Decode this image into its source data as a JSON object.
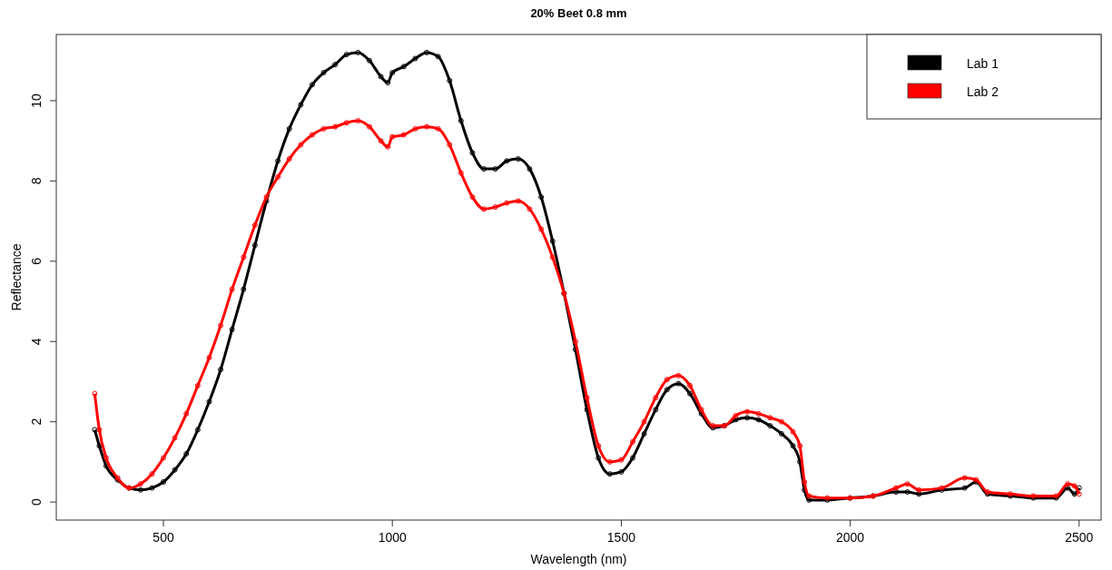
{
  "chart_data": {
    "type": "line",
    "title": "20% Beet 0.8 mm",
    "xlabel": "Wavelength (nm)",
    "ylabel": "Reflectance",
    "marker": "circle",
    "legend": "top right",
    "xlim": [
      266,
      2548
    ],
    "ylim": [
      -0.45,
      11.65
    ],
    "xticks": [
      500,
      1000,
      1500,
      2000,
      2500
    ],
    "yticks": [
      0,
      2,
      4,
      6,
      8,
      10
    ],
    "x": [
      350,
      360,
      375,
      400,
      425,
      450,
      475,
      500,
      525,
      550,
      575,
      600,
      625,
      650,
      675,
      700,
      725,
      750,
      775,
      800,
      825,
      850,
      875,
      900,
      925,
      950,
      975,
      990,
      1000,
      1025,
      1050,
      1075,
      1100,
      1125,
      1150,
      1175,
      1200,
      1225,
      1250,
      1275,
      1300,
      1325,
      1350,
      1375,
      1400,
      1425,
      1450,
      1475,
      1500,
      1525,
      1550,
      1575,
      1600,
      1625,
      1650,
      1675,
      1700,
      1725,
      1750,
      1775,
      1800,
      1825,
      1850,
      1875,
      1890,
      1900,
      1910,
      1950,
      2000,
      2050,
      2100,
      2125,
      2150,
      2200,
      2250,
      2275,
      2300,
      2350,
      2400,
      2450,
      2475,
      2490,
      2500
    ],
    "series": [
      {
        "name": "Lab 1",
        "color": "#000000",
        "values": [
          1.8,
          1.4,
          0.9,
          0.55,
          0.35,
          0.3,
          0.35,
          0.5,
          0.8,
          1.2,
          1.8,
          2.5,
          3.3,
          4.3,
          5.3,
          6.4,
          7.5,
          8.5,
          9.3,
          9.9,
          10.4,
          10.7,
          10.9,
          11.15,
          11.2,
          11.0,
          10.6,
          10.45,
          10.7,
          10.85,
          11.05,
          11.2,
          11.1,
          10.5,
          9.5,
          8.7,
          8.3,
          8.3,
          8.5,
          8.55,
          8.3,
          7.6,
          6.5,
          5.2,
          3.8,
          2.3,
          1.1,
          0.7,
          0.75,
          1.1,
          1.7,
          2.3,
          2.8,
          2.95,
          2.7,
          2.2,
          1.85,
          1.9,
          2.05,
          2.1,
          2.05,
          1.9,
          1.7,
          1.4,
          1.0,
          0.3,
          0.05,
          0.05,
          0.1,
          0.15,
          0.25,
          0.25,
          0.2,
          0.3,
          0.35,
          0.5,
          0.2,
          0.15,
          0.1,
          0.1,
          0.35,
          0.2,
          0.35
        ]
      },
      {
        "name": "Lab 2",
        "color": "#ff0000",
        "values": [
          2.7,
          1.8,
          1.1,
          0.6,
          0.35,
          0.45,
          0.7,
          1.1,
          1.6,
          2.2,
          2.9,
          3.6,
          4.4,
          5.3,
          6.1,
          6.9,
          7.6,
          8.1,
          8.55,
          8.9,
          9.15,
          9.3,
          9.35,
          9.45,
          9.5,
          9.35,
          9.0,
          8.85,
          9.1,
          9.15,
          9.3,
          9.35,
          9.3,
          8.9,
          8.2,
          7.6,
          7.3,
          7.35,
          7.45,
          7.5,
          7.3,
          6.8,
          6.1,
          5.2,
          4.0,
          2.6,
          1.4,
          1.0,
          1.05,
          1.5,
          2.0,
          2.6,
          3.05,
          3.15,
          2.9,
          2.3,
          1.9,
          1.9,
          2.15,
          2.25,
          2.2,
          2.1,
          2.0,
          1.75,
          1.4,
          0.5,
          0.15,
          0.1,
          0.1,
          0.15,
          0.35,
          0.45,
          0.3,
          0.35,
          0.6,
          0.55,
          0.25,
          0.2,
          0.15,
          0.15,
          0.45,
          0.4,
          0.2
        ]
      }
    ]
  }
}
